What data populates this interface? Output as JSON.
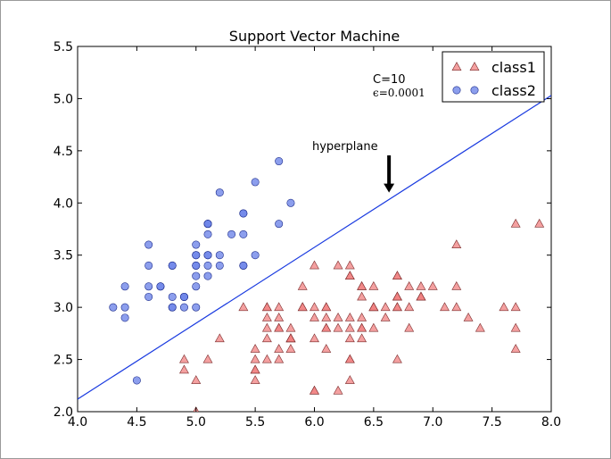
{
  "chart_data": {
    "type": "scatter",
    "title": "Support Vector Machine",
    "xlabel": "",
    "ylabel": "",
    "xlim": [
      4.0,
      8.0
    ],
    "ylim": [
      2.0,
      5.5
    ],
    "xticks": [
      "4.0",
      "4.5",
      "5.0",
      "5.5",
      "6.0",
      "6.5",
      "7.0",
      "7.5",
      "8.0"
    ],
    "yticks": [
      "2.0",
      "2.5",
      "3.0",
      "3.5",
      "4.0",
      "4.5",
      "5.0",
      "5.5"
    ],
    "legend_position": "top-right",
    "series": [
      {
        "name": "class1",
        "marker": "triangle",
        "color": "#f08080",
        "points": [
          [
            7.0,
            3.2
          ],
          [
            6.4,
            3.2
          ],
          [
            6.9,
            3.1
          ],
          [
            5.5,
            2.3
          ],
          [
            6.5,
            2.8
          ],
          [
            5.7,
            2.8
          ],
          [
            6.3,
            3.3
          ],
          [
            4.9,
            2.4
          ],
          [
            6.6,
            2.9
          ],
          [
            5.2,
            2.7
          ],
          [
            5.0,
            2.0
          ],
          [
            5.9,
            3.0
          ],
          [
            6.0,
            2.2
          ],
          [
            6.1,
            2.9
          ],
          [
            5.6,
            2.9
          ],
          [
            6.7,
            3.1
          ],
          [
            5.6,
            3.0
          ],
          [
            5.8,
            2.7
          ],
          [
            6.2,
            2.2
          ],
          [
            5.6,
            2.5
          ],
          [
            5.9,
            3.2
          ],
          [
            6.1,
            2.8
          ],
          [
            6.3,
            2.5
          ],
          [
            6.1,
            2.8
          ],
          [
            6.4,
            2.9
          ],
          [
            6.6,
            3.0
          ],
          [
            6.8,
            2.8
          ],
          [
            6.7,
            3.0
          ],
          [
            6.0,
            2.9
          ],
          [
            5.7,
            2.6
          ],
          [
            5.5,
            2.4
          ],
          [
            5.5,
            2.4
          ],
          [
            5.8,
            2.7
          ],
          [
            6.0,
            2.7
          ],
          [
            5.4,
            3.0
          ],
          [
            6.0,
            3.4
          ],
          [
            6.7,
            3.1
          ],
          [
            6.3,
            2.3
          ],
          [
            5.6,
            3.0
          ],
          [
            5.5,
            2.5
          ],
          [
            5.5,
            2.6
          ],
          [
            6.1,
            3.0
          ],
          [
            5.8,
            2.6
          ],
          [
            5.0,
            2.3
          ],
          [
            5.6,
            2.7
          ],
          [
            5.7,
            3.0
          ],
          [
            5.7,
            2.9
          ],
          [
            6.2,
            2.9
          ],
          [
            5.1,
            2.5
          ],
          [
            5.7,
            2.8
          ],
          [
            6.3,
            3.3
          ],
          [
            5.8,
            2.7
          ],
          [
            7.1,
            3.0
          ],
          [
            6.3,
            2.9
          ],
          [
            6.5,
            3.0
          ],
          [
            7.6,
            3.0
          ],
          [
            4.9,
            2.5
          ],
          [
            7.3,
            2.9
          ],
          [
            6.7,
            2.5
          ],
          [
            7.2,
            3.6
          ],
          [
            6.5,
            3.2
          ],
          [
            6.4,
            2.7
          ],
          [
            6.8,
            3.0
          ],
          [
            5.7,
            2.5
          ],
          [
            5.8,
            2.8
          ],
          [
            6.4,
            3.2
          ],
          [
            6.5,
            3.0
          ],
          [
            7.7,
            3.8
          ],
          [
            7.7,
            2.6
          ],
          [
            6.0,
            2.2
          ],
          [
            6.9,
            3.2
          ],
          [
            5.6,
            2.8
          ],
          [
            7.7,
            2.8
          ],
          [
            6.3,
            2.7
          ],
          [
            6.7,
            3.3
          ],
          [
            7.2,
            3.2
          ],
          [
            6.2,
            2.8
          ],
          [
            6.1,
            3.0
          ],
          [
            6.4,
            2.8
          ],
          [
            7.2,
            3.0
          ],
          [
            7.4,
            2.8
          ],
          [
            7.9,
            3.8
          ],
          [
            6.4,
            2.8
          ],
          [
            6.3,
            2.8
          ],
          [
            6.1,
            2.6
          ],
          [
            7.7,
            3.0
          ],
          [
            6.3,
            3.4
          ],
          [
            6.4,
            3.1
          ],
          [
            6.0,
            3.0
          ],
          [
            6.9,
            3.1
          ],
          [
            6.7,
            3.1
          ],
          [
            6.9,
            3.1
          ],
          [
            5.8,
            2.7
          ],
          [
            6.8,
            3.2
          ],
          [
            6.7,
            3.3
          ],
          [
            6.7,
            3.0
          ],
          [
            6.3,
            2.5
          ],
          [
            6.5,
            3.0
          ],
          [
            6.2,
            3.4
          ],
          [
            5.9,
            3.0
          ]
        ]
      },
      {
        "name": "class2",
        "marker": "circle",
        "color": "#6f86e8",
        "points": [
          [
            5.1,
            3.5
          ],
          [
            4.9,
            3.0
          ],
          [
            4.7,
            3.2
          ],
          [
            4.6,
            3.1
          ],
          [
            5.0,
            3.6
          ],
          [
            5.4,
            3.9
          ],
          [
            4.6,
            3.4
          ],
          [
            5.0,
            3.4
          ],
          [
            4.4,
            2.9
          ],
          [
            4.9,
            3.1
          ],
          [
            5.4,
            3.7
          ],
          [
            4.8,
            3.4
          ],
          [
            4.8,
            3.0
          ],
          [
            4.3,
            3.0
          ],
          [
            5.8,
            4.0
          ],
          [
            5.7,
            4.4
          ],
          [
            5.4,
            3.9
          ],
          [
            5.1,
            3.5
          ],
          [
            5.7,
            3.8
          ],
          [
            5.1,
            3.8
          ],
          [
            5.4,
            3.4
          ],
          [
            5.1,
            3.7
          ],
          [
            4.6,
            3.6
          ],
          [
            5.1,
            3.3
          ],
          [
            4.8,
            3.4
          ],
          [
            5.0,
            3.0
          ],
          [
            5.0,
            3.4
          ],
          [
            5.2,
            3.5
          ],
          [
            5.2,
            3.4
          ],
          [
            4.7,
            3.2
          ],
          [
            4.8,
            3.1
          ],
          [
            5.4,
            3.4
          ],
          [
            5.2,
            4.1
          ],
          [
            5.5,
            4.2
          ],
          [
            4.9,
            3.1
          ],
          [
            5.0,
            3.2
          ],
          [
            5.5,
            3.5
          ],
          [
            4.9,
            3.1
          ],
          [
            4.4,
            3.0
          ],
          [
            5.1,
            3.4
          ],
          [
            5.0,
            3.5
          ],
          [
            4.5,
            2.3
          ],
          [
            4.4,
            3.2
          ],
          [
            5.0,
            3.5
          ],
          [
            5.1,
            3.8
          ],
          [
            4.8,
            3.0
          ],
          [
            5.1,
            3.8
          ],
          [
            4.6,
            3.2
          ],
          [
            5.3,
            3.7
          ],
          [
            5.0,
            3.3
          ]
        ]
      }
    ],
    "hyperplane": {
      "x": [
        4.0,
        8.0
      ],
      "y": [
        2.12,
        5.03
      ],
      "color": "#1a3be0"
    },
    "annotations": {
      "c_label": "C=10",
      "eps_label": "ϵ=0.0001",
      "hyperplane_label": "hyperplane",
      "arrow_tip": [
        6.63,
        4.1
      ]
    }
  }
}
